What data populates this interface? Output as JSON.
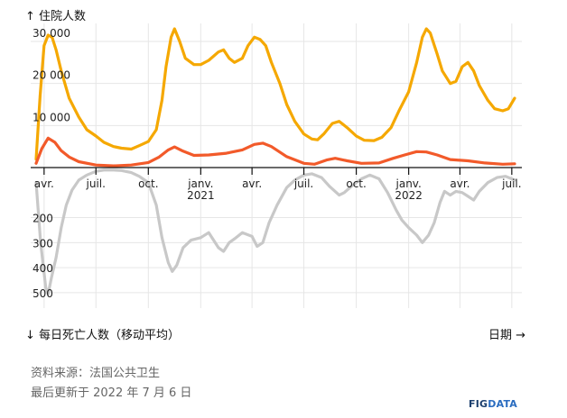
{
  "header": {
    "top_axis_title": "↑ 住院人数",
    "bottom_axis_title": "↓ 每日死亡人数（移动平均）",
    "x_axis_title": "日期 →"
  },
  "footer": {
    "source": "资料来源：法国公共卫生",
    "updated": "最后更新于 2022 年 7 月 6 日",
    "brand_main": "FIG",
    "brand_accent": "DATA"
  },
  "colors": {
    "hospitalized_total": "#f5a800",
    "icu": "#f25a2a",
    "deaths": "#c8c8c8",
    "grid": "#e6e6e6"
  },
  "chart_data": {
    "type": "line",
    "x_ticks": [
      {
        "label": "avr.",
        "year": "",
        "date": "2020-04-01"
      },
      {
        "label": "juil.",
        "year": "",
        "date": "2020-07-01"
      },
      {
        "label": "oct.",
        "year": "",
        "date": "2020-10-01"
      },
      {
        "label": "janv.",
        "year": "2021",
        "date": "2021-01-01"
      },
      {
        "label": "avr.",
        "year": "",
        "date": "2021-04-01"
      },
      {
        "label": "juil.",
        "year": "",
        "date": "2021-07-01"
      },
      {
        "label": "oct.",
        "year": "",
        "date": "2021-10-01"
      },
      {
        "label": "janv.",
        "year": "2022",
        "date": "2022-01-01"
      },
      {
        "label": "avr.",
        "year": "",
        "date": "2022-04-01"
      },
      {
        "label": "juil.",
        "year": "",
        "date": "2022-07-01"
      }
    ],
    "x_range": [
      "2020-03-18",
      "2022-07-06"
    ],
    "upper_y_ticks": [
      {
        "value": 10000,
        "label": "10 000"
      },
      {
        "value": 20000,
        "label": "20 000"
      },
      {
        "value": 30000,
        "label": "30 000"
      }
    ],
    "upper_ylim": [
      0,
      33000
    ],
    "lower_y_ticks": [
      {
        "value": 200,
        "label": "200"
      },
      {
        "value": 300,
        "label": "300"
      },
      {
        "value": 400,
        "label": "400"
      },
      {
        "value": 500,
        "label": "500"
      }
    ],
    "lower_ylim": [
      0,
      540
    ],
    "series": [
      {
        "panel": "upper",
        "color": "#f5a800",
        "points": [
          [
            "2020-03-18",
            2000
          ],
          [
            "2020-03-25",
            17000
          ],
          [
            "2020-04-01",
            29000
          ],
          [
            "2020-04-08",
            31500
          ],
          [
            "2020-04-15",
            31000
          ],
          [
            "2020-04-22",
            28000
          ],
          [
            "2020-05-01",
            23000
          ],
          [
            "2020-05-15",
            16500
          ],
          [
            "2020-06-01",
            12000
          ],
          [
            "2020-06-15",
            9000
          ],
          [
            "2020-07-01",
            7500
          ],
          [
            "2020-07-15",
            6000
          ],
          [
            "2020-08-01",
            5000
          ],
          [
            "2020-08-15",
            4600
          ],
          [
            "2020-09-01",
            4400
          ],
          [
            "2020-09-15",
            5200
          ],
          [
            "2020-10-01",
            6200
          ],
          [
            "2020-10-15",
            9000
          ],
          [
            "2020-10-25",
            16000
          ],
          [
            "2020-11-01",
            24000
          ],
          [
            "2020-11-10",
            31000
          ],
          [
            "2020-11-16",
            33000
          ],
          [
            "2020-11-25",
            30000
          ],
          [
            "2020-12-05",
            26000
          ],
          [
            "2020-12-20",
            24500
          ],
          [
            "2021-01-01",
            24500
          ],
          [
            "2021-01-15",
            25500
          ],
          [
            "2021-02-01",
            27500
          ],
          [
            "2021-02-10",
            28000
          ],
          [
            "2021-02-20",
            26000
          ],
          [
            "2021-03-01",
            25000
          ],
          [
            "2021-03-15",
            26000
          ],
          [
            "2021-03-25",
            29000
          ],
          [
            "2021-04-05",
            31000
          ],
          [
            "2021-04-15",
            30500
          ],
          [
            "2021-04-25",
            29000
          ],
          [
            "2021-05-05",
            25000
          ],
          [
            "2021-05-20",
            20000
          ],
          [
            "2021-06-01",
            15000
          ],
          [
            "2021-06-15",
            11000
          ],
          [
            "2021-07-01",
            8000
          ],
          [
            "2021-07-15",
            6800
          ],
          [
            "2021-07-25",
            6600
          ],
          [
            "2021-08-05",
            8000
          ],
          [
            "2021-08-20",
            10500
          ],
          [
            "2021-09-01",
            11000
          ],
          [
            "2021-09-15",
            9500
          ],
          [
            "2021-10-01",
            7500
          ],
          [
            "2021-10-15",
            6500
          ],
          [
            "2021-11-01",
            6400
          ],
          [
            "2021-11-15",
            7200
          ],
          [
            "2021-12-01",
            9500
          ],
          [
            "2021-12-15",
            13500
          ],
          [
            "2022-01-01",
            18000
          ],
          [
            "2022-01-15",
            25000
          ],
          [
            "2022-01-25",
            31000
          ],
          [
            "2022-02-01",
            33000
          ],
          [
            "2022-02-08",
            32000
          ],
          [
            "2022-02-20",
            27000
          ],
          [
            "2022-03-01",
            23000
          ],
          [
            "2022-03-15",
            20000
          ],
          [
            "2022-03-25",
            20500
          ],
          [
            "2022-04-05",
            24000
          ],
          [
            "2022-04-15",
            25000
          ],
          [
            "2022-04-25",
            23000
          ],
          [
            "2022-05-05",
            19500
          ],
          [
            "2022-05-20",
            16000
          ],
          [
            "2022-06-01",
            14000
          ],
          [
            "2022-06-15",
            13500
          ],
          [
            "2022-06-25",
            14000
          ],
          [
            "2022-07-06",
            16500
          ]
        ]
      },
      {
        "panel": "upper",
        "color": "#f25a2a",
        "points": [
          [
            "2020-03-18",
            1000
          ],
          [
            "2020-03-28",
            4500
          ],
          [
            "2020-04-08",
            7000
          ],
          [
            "2020-04-20",
            6000
          ],
          [
            "2020-05-01",
            4000
          ],
          [
            "2020-05-15",
            2500
          ],
          [
            "2020-06-01",
            1400
          ],
          [
            "2020-07-01",
            600
          ],
          [
            "2020-08-01",
            400
          ],
          [
            "2020-09-01",
            600
          ],
          [
            "2020-10-01",
            1200
          ],
          [
            "2020-10-20",
            2500
          ],
          [
            "2020-11-05",
            4200
          ],
          [
            "2020-11-16",
            4900
          ],
          [
            "2020-12-01",
            3900
          ],
          [
            "2020-12-20",
            2900
          ],
          [
            "2021-01-15",
            3000
          ],
          [
            "2021-02-15",
            3400
          ],
          [
            "2021-03-15",
            4200
          ],
          [
            "2021-04-05",
            5500
          ],
          [
            "2021-04-20",
            5800
          ],
          [
            "2021-05-05",
            5000
          ],
          [
            "2021-06-01",
            2600
          ],
          [
            "2021-07-01",
            1000
          ],
          [
            "2021-07-20",
            800
          ],
          [
            "2021-08-10",
            1800
          ],
          [
            "2021-08-25",
            2200
          ],
          [
            "2021-09-15",
            1600
          ],
          [
            "2021-10-10",
            1000
          ],
          [
            "2021-11-10",
            1100
          ],
          [
            "2021-12-05",
            2200
          ],
          [
            "2021-12-25",
            3000
          ],
          [
            "2022-01-15",
            3800
          ],
          [
            "2022-02-01",
            3700
          ],
          [
            "2022-02-20",
            3000
          ],
          [
            "2022-03-15",
            1900
          ],
          [
            "2022-04-15",
            1600
          ],
          [
            "2022-05-15",
            1100
          ],
          [
            "2022-06-15",
            800
          ],
          [
            "2022-07-06",
            900
          ]
        ]
      },
      {
        "panel": "lower",
        "color": "#c8c8c8",
        "points": [
          [
            "2020-03-18",
            60
          ],
          [
            "2020-03-26",
            300
          ],
          [
            "2020-04-04",
            480
          ],
          [
            "2020-04-08",
            505
          ],
          [
            "2020-04-14",
            440
          ],
          [
            "2020-04-22",
            360
          ],
          [
            "2020-05-01",
            240
          ],
          [
            "2020-05-10",
            150
          ],
          [
            "2020-05-20",
            90
          ],
          [
            "2020-06-01",
            50
          ],
          [
            "2020-06-15",
            30
          ],
          [
            "2020-07-01",
            15
          ],
          [
            "2020-07-15",
            10
          ],
          [
            "2020-08-01",
            10
          ],
          [
            "2020-08-15",
            12
          ],
          [
            "2020-09-01",
            20
          ],
          [
            "2020-09-15",
            35
          ],
          [
            "2020-10-01",
            60
          ],
          [
            "2020-10-15",
            150
          ],
          [
            "2020-10-25",
            280
          ],
          [
            "2020-11-05",
            380
          ],
          [
            "2020-11-12",
            415
          ],
          [
            "2020-11-20",
            390
          ],
          [
            "2020-12-01",
            320
          ],
          [
            "2020-12-15",
            290
          ],
          [
            "2021-01-01",
            280
          ],
          [
            "2021-01-15",
            260
          ],
          [
            "2021-02-01",
            320
          ],
          [
            "2021-02-10",
            335
          ],
          [
            "2021-02-20",
            300
          ],
          [
            "2021-03-01",
            285
          ],
          [
            "2021-03-15",
            260
          ],
          [
            "2021-04-01",
            275
          ],
          [
            "2021-04-10",
            315
          ],
          [
            "2021-04-20",
            300
          ],
          [
            "2021-05-01",
            220
          ],
          [
            "2021-05-15",
            150
          ],
          [
            "2021-06-01",
            80
          ],
          [
            "2021-06-15",
            50
          ],
          [
            "2021-07-01",
            30
          ],
          [
            "2021-07-15",
            25
          ],
          [
            "2021-08-01",
            40
          ],
          [
            "2021-08-15",
            75
          ],
          [
            "2021-09-01",
            110
          ],
          [
            "2021-09-10",
            100
          ],
          [
            "2021-09-25",
            70
          ],
          [
            "2021-10-10",
            45
          ],
          [
            "2021-10-25",
            30
          ],
          [
            "2021-11-10",
            45
          ],
          [
            "2021-11-25",
            100
          ],
          [
            "2021-12-10",
            170
          ],
          [
            "2021-12-20",
            210
          ],
          [
            "2022-01-01",
            240
          ],
          [
            "2022-01-15",
            270
          ],
          [
            "2022-01-25",
            300
          ],
          [
            "2022-02-05",
            270
          ],
          [
            "2022-02-15",
            220
          ],
          [
            "2022-02-25",
            140
          ],
          [
            "2022-03-05",
            95
          ],
          [
            "2022-03-15",
            110
          ],
          [
            "2022-03-25",
            95
          ],
          [
            "2022-04-05",
            100
          ],
          [
            "2022-04-15",
            115
          ],
          [
            "2022-04-25",
            130
          ],
          [
            "2022-05-05",
            95
          ],
          [
            "2022-05-20",
            60
          ],
          [
            "2022-06-05",
            40
          ],
          [
            "2022-06-20",
            35
          ],
          [
            "2022-07-06",
            50
          ]
        ]
      }
    ]
  }
}
